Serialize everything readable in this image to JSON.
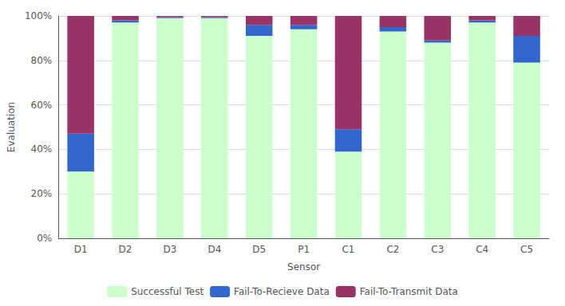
{
  "chart_data": {
    "type": "bar",
    "categories": [
      "D1",
      "D2",
      "D3",
      "D4",
      "D5",
      "P1",
      "C1",
      "C2",
      "C3",
      "C4",
      "C5"
    ],
    "series": [
      {
        "name": "Successful Test",
        "color": "#ccffcc",
        "values": [
          30,
          97,
          99,
          99,
          91,
          94,
          39,
          93,
          88,
          97,
          79
        ]
      },
      {
        "name": "Fail-To-Recieve Data",
        "color": "#3366cc",
        "values": [
          17,
          1,
          0.5,
          0.5,
          5,
          2,
          10,
          2,
          1,
          1,
          12
        ]
      },
      {
        "name": "Fail-To-Transmit Data",
        "color": "#993366",
        "values": [
          53,
          2,
          0.5,
          0.5,
          4,
          4,
          51,
          5,
          11,
          2,
          9
        ]
      }
    ],
    "xlabel": "Sensor",
    "ylabel": "Evaluation",
    "ylim": [
      0,
      100
    ],
    "yticks": [
      {
        "value": 0,
        "label": "0%"
      },
      {
        "value": 20,
        "label": "20%"
      },
      {
        "value": 40,
        "label": "40%"
      },
      {
        "value": 60,
        "label": "60%"
      },
      {
        "value": 80,
        "label": "80%"
      },
      {
        "value": 100,
        "label": "100%"
      }
    ],
    "grid": true,
    "stacked": true,
    "legend": "bottom"
  }
}
